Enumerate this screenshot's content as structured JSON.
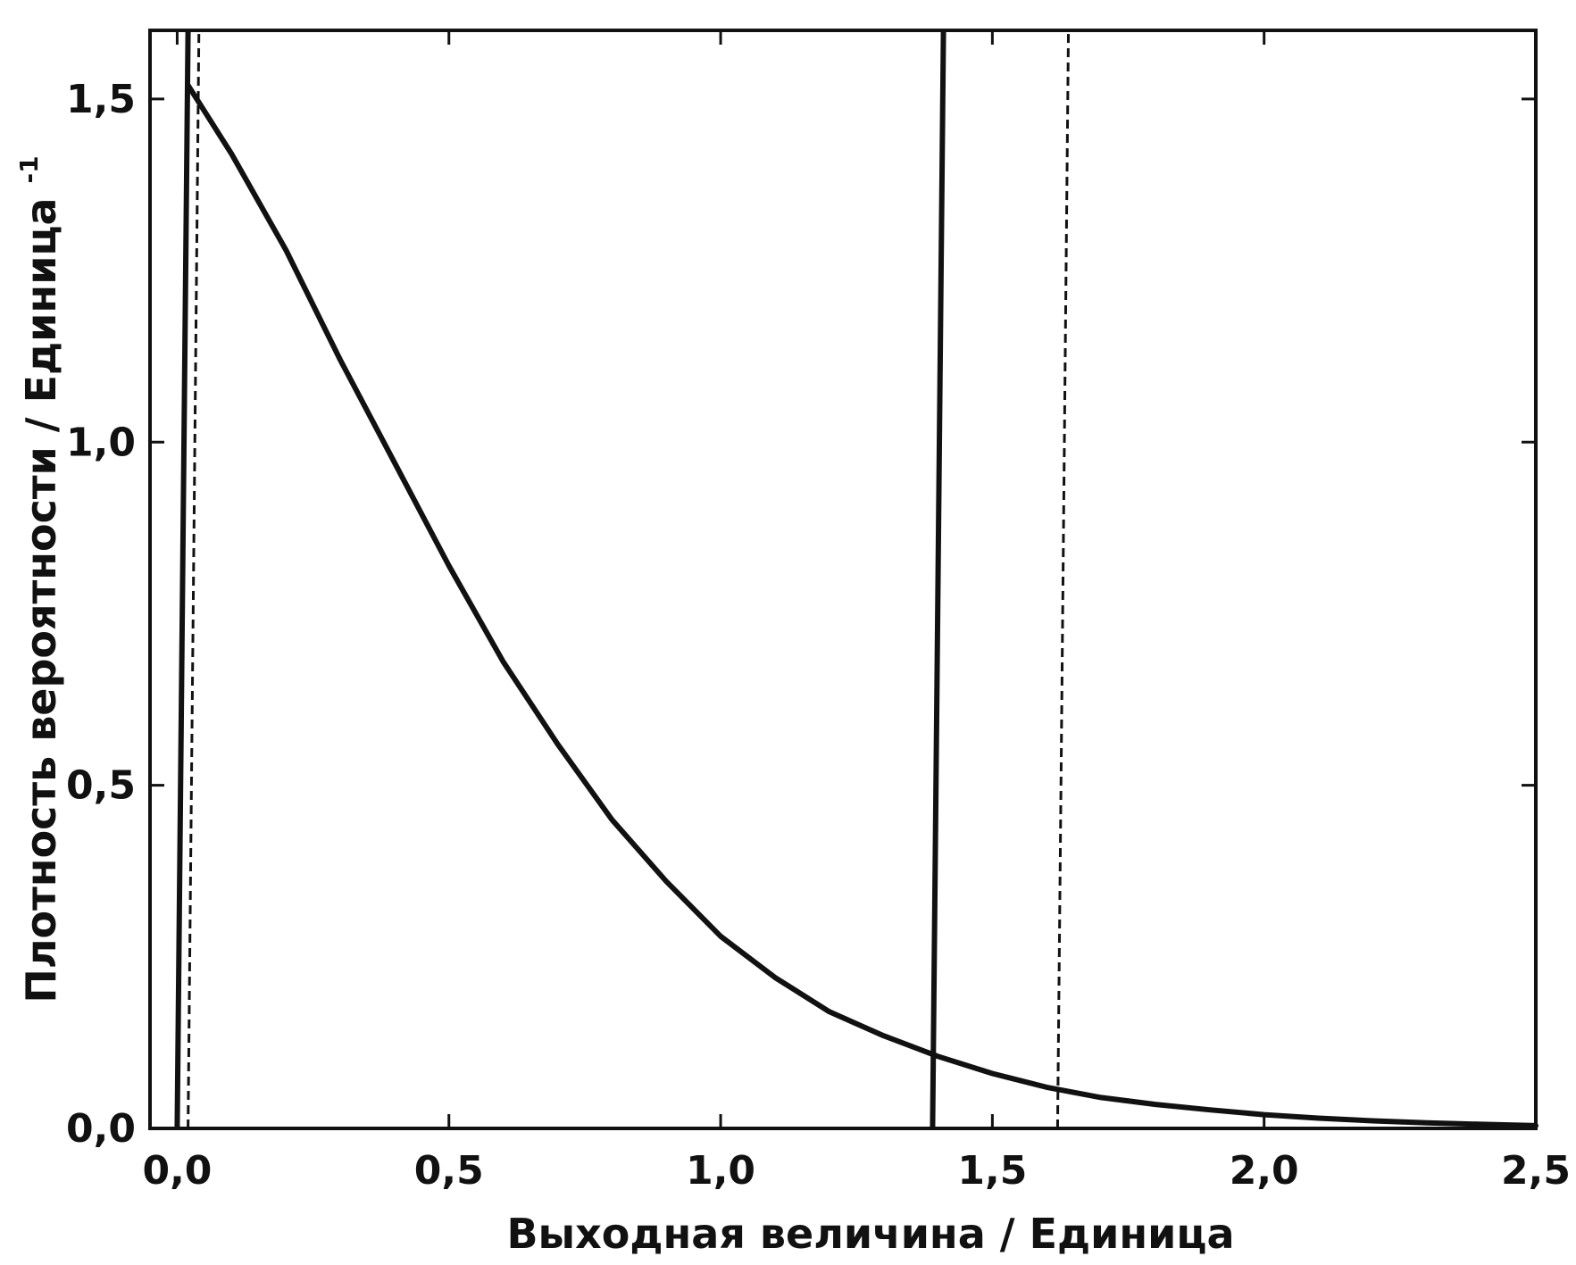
{
  "chart_data": {
    "type": "line",
    "title": "",
    "xlabel": "Выходная величина / Единица",
    "ylabel": "Плотность вероятности / Единица",
    "ylabel_superscript": "-1",
    "xlim": [
      -0.05,
      2.5
    ],
    "ylim": [
      0,
      1.6
    ],
    "x_ticks": [
      0.0,
      0.5,
      1.0,
      1.5,
      2.0,
      2.5
    ],
    "x_tick_labels": [
      "0,0",
      "0,5",
      "1,0",
      "1,5",
      "2,0",
      "2,5"
    ],
    "y_ticks": [
      0.0,
      0.5,
      1.0,
      1.5
    ],
    "y_tick_labels": [
      "0,0",
      "0,5",
      "1,0",
      "1,5"
    ],
    "grid": false,
    "legend": "none",
    "series": [
      {
        "style": "solid",
        "color": "#111111",
        "x": [
          0.02,
          0.1,
          0.2,
          0.3,
          0.4,
          0.5,
          0.6,
          0.7,
          0.8,
          0.9,
          1.0,
          1.1,
          1.2,
          1.3,
          1.4,
          1.5,
          1.6,
          1.7,
          1.8,
          1.9,
          2.0,
          2.1,
          2.2,
          2.3,
          2.4,
          2.5
        ],
        "y": [
          1.52,
          1.42,
          1.28,
          1.12,
          0.97,
          0.82,
          0.68,
          0.56,
          0.45,
          0.36,
          0.28,
          0.22,
          0.17,
          0.135,
          0.105,
          0.08,
          0.06,
          0.045,
          0.035,
          0.027,
          0.02,
          0.015,
          0.011,
          0.008,
          0.006,
          0.004
        ]
      }
    ],
    "vertical_lines": [
      {
        "style": "solid",
        "x_bottom": 0.0,
        "x_top": 0.02
      },
      {
        "style": "dashed",
        "x_bottom": 0.02,
        "x_top": 0.04
      },
      {
        "style": "solid",
        "x_bottom": 1.39,
        "x_top": 1.41
      },
      {
        "style": "dashed",
        "x_bottom": 1.62,
        "x_top": 1.64
      }
    ]
  }
}
